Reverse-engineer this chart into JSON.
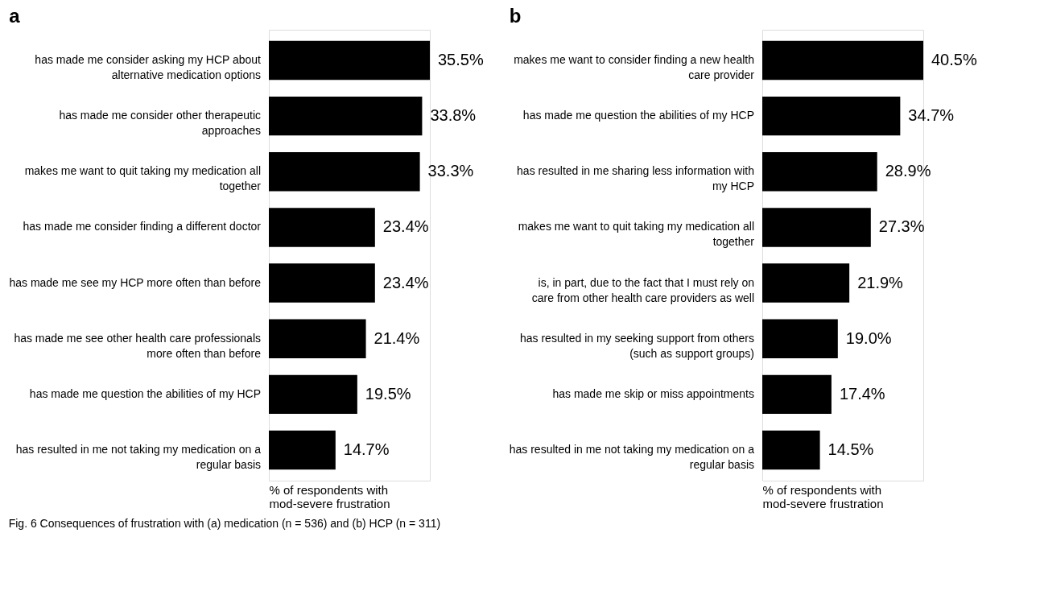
{
  "chart_data": [
    {
      "type": "bar",
      "orientation": "horizontal",
      "title": "a",
      "xlabel": "% of respondents with mod-severe frustration",
      "categories": [
        "has made me consider asking my HCP about alternative medication options",
        "has made me consider other therapeutic approaches",
        "makes me want to quit taking my medication all together",
        "has made me consider finding a different doctor",
        "has made me see my HCP more often than before",
        "has made me see other health care professionals more often than before",
        "has made me question the abilities of my HCP",
        "has resulted in me not taking my medication on a regular basis"
      ],
      "series": [
        {
          "color": "#000000",
          "values": [
            35.5,
            33.8,
            33.3,
            23.4,
            23.4,
            21.4,
            19.5,
            14.7
          ],
          "value_labels": [
            "35.5%",
            "33.8%",
            "33.3%",
            "23.4%",
            "23.4%",
            "21.4%",
            "19.5%",
            "14.7%"
          ]
        }
      ],
      "grid": false,
      "legend": false
    },
    {
      "type": "bar",
      "orientation": "horizontal",
      "title": "b",
      "xlabel": "% of respondents with mod-severe frustration",
      "categories": [
        "makes me want to consider finding a new health care provider",
        "has made me question the abilities of my HCP",
        "has resulted in me sharing less information with my HCP",
        "makes me want to quit taking my medication all together",
        "is, in part, due to the fact that I must rely on care from other health care providers as well",
        "has resulted in my seeking support from others (such as support groups)",
        "has made me skip or miss appointments",
        "has resulted in me not taking my medication on a regular basis"
      ],
      "series": [
        {
          "color": "#000000",
          "values": [
            40.5,
            34.7,
            28.9,
            27.3,
            21.9,
            19.0,
            17.4,
            14.5
          ],
          "value_labels": [
            "40.5%",
            "34.7%",
            "28.9%",
            "27.3%",
            "21.9%",
            "19.0%",
            "17.4%",
            "14.5%"
          ]
        }
      ],
      "grid": false,
      "legend": false,
      "annotations": [
        "Fig. 6 Consequences of frustration with (a) medication (n = 536) and (b) HCP (n = 311)"
      ]
    }
  ]
}
